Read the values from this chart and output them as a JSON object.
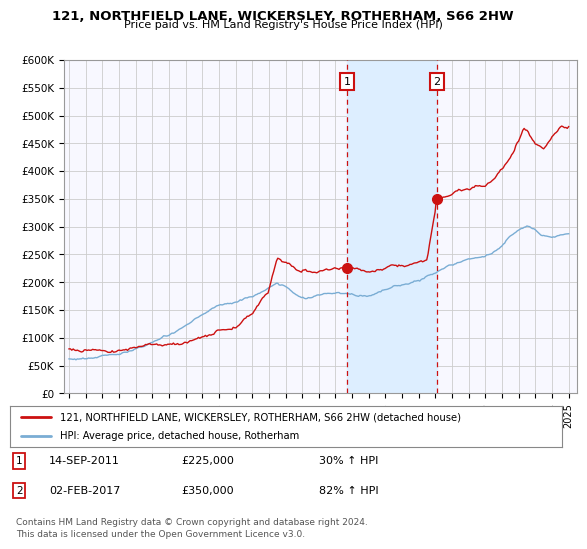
{
  "title1": "121, NORTHFIELD LANE, WICKERSLEY, ROTHERHAM, S66 2HW",
  "title2": "Price paid vs. HM Land Registry's House Price Index (HPI)",
  "ylabel_ticks": [
    "£0",
    "£50K",
    "£100K",
    "£150K",
    "£200K",
    "£250K",
    "£300K",
    "£350K",
    "£400K",
    "£450K",
    "£500K",
    "£550K",
    "£600K"
  ],
  "ytick_values": [
    0,
    50000,
    100000,
    150000,
    200000,
    250000,
    300000,
    350000,
    400000,
    450000,
    500000,
    550000,
    600000
  ],
  "ylim": [
    0,
    600000
  ],
  "xlim_start": 1994.7,
  "xlim_end": 2025.5,
  "xtick_years": [
    1995,
    1996,
    1997,
    1998,
    1999,
    2000,
    2001,
    2002,
    2003,
    2004,
    2005,
    2006,
    2007,
    2008,
    2009,
    2010,
    2011,
    2012,
    2013,
    2014,
    2015,
    2016,
    2017,
    2018,
    2019,
    2020,
    2021,
    2022,
    2023,
    2024,
    2025
  ],
  "hpi_color": "#7aadd4",
  "price_color": "#cc1111",
  "sale1_x": 2011.71,
  "sale1_y": 225000,
  "sale2_x": 2017.08,
  "sale2_y": 350000,
  "sale1_label": "1",
  "sale2_label": "2",
  "shade_color": "#ddeeff",
  "legend_line1": "121, NORTHFIELD LANE, WICKERSLEY, ROTHERHAM, S66 2HW (detached house)",
  "legend_line2": "HPI: Average price, detached house, Rotherham",
  "annot1_date": "14-SEP-2011",
  "annot1_price": "£225,000",
  "annot1_hpi": "30% ↑ HPI",
  "annot2_date": "02-FEB-2017",
  "annot2_price": "£350,000",
  "annot2_hpi": "82% ↑ HPI",
  "footnote": "Contains HM Land Registry data © Crown copyright and database right 2024.\nThis data is licensed under the Open Government Licence v3.0.",
  "bg_color": "#ffffff",
  "plot_bg": "#f8f8ff"
}
